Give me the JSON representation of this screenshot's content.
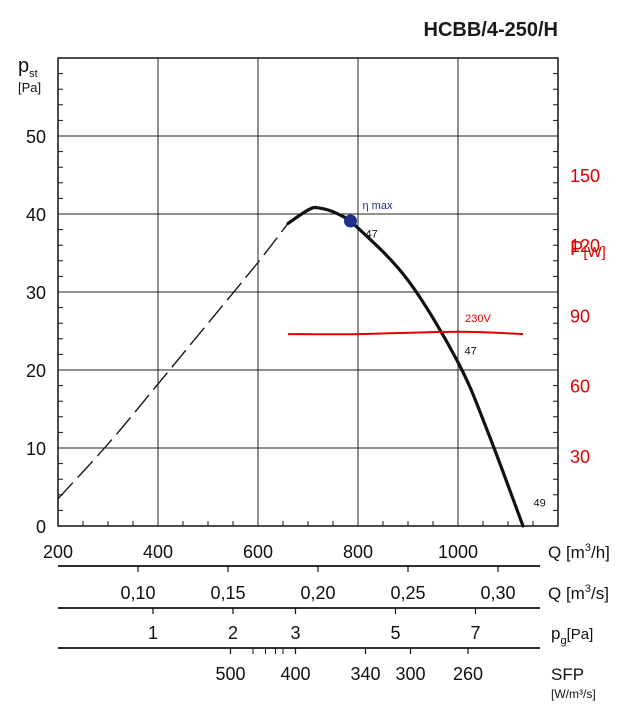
{
  "chart_data": {
    "type": "line",
    "title": "HCBB/4-250/H",
    "x_axis": {
      "label_main": "Q [m",
      "label_sup": "3",
      "label_end": "/h]",
      "min": 200,
      "max": 1000,
      "range": [
        200,
        1200
      ],
      "ticks": [
        "200",
        "400",
        "600",
        "800",
        "1000"
      ]
    },
    "y_axis": {
      "label_top": "p",
      "label_sub": "st",
      "label_unit": "[Pa]",
      "range": [
        0,
        60
      ],
      "ticks": [
        "0",
        "10",
        "20",
        "30",
        "40",
        "50"
      ]
    },
    "power_axis": {
      "label": "P",
      "label_unit": "[W]",
      "range": [
        0,
        200
      ],
      "ticks": [
        "30",
        "60",
        "90",
        "120",
        "150"
      ],
      "color": "#e00000"
    },
    "grid": true,
    "series": [
      {
        "style": "dashed",
        "x": [
          200,
          300,
          400,
          500,
          600,
          660
        ],
        "y": [
          3.5,
          10.5,
          18.2,
          26.0,
          33.8,
          38.8
        ]
      },
      {
        "style": "solid",
        "x": [
          660,
          700,
          720,
          760,
          800,
          900,
          1000,
          1060,
          1130
        ],
        "y": [
          38.8,
          40.5,
          40.8,
          40.0,
          38.2,
          31.5,
          21.0,
          12.0,
          0
        ]
      },
      {
        "name": "230V",
        "style": "power",
        "x": [
          660,
          800,
          1000,
          1130
        ],
        "y": [
          82,
          82,
          83,
          82
        ],
        "color": "#e00000"
      }
    ],
    "eta_max": {
      "label": "η max",
      "x": 785,
      "y": 39.1,
      "color": "#1e2f8a"
    },
    "efficiency_labels": [
      {
        "text": "47",
        "x": 807,
        "y": 37
      },
      {
        "text": "47",
        "x": 1005,
        "y": 22.0
      },
      {
        "text": "49",
        "x": 1143,
        "y": 2.5
      }
    ],
    "secondary_scales": [
      {
        "label": "Q [m³/s]",
        "label_main": "Q [m",
        "label_sup": "3",
        "label_end": "/s]",
        "ticks": [
          {
            "text": "0,10",
            "q": 360
          },
          {
            "text": "0,15",
            "q": 540
          },
          {
            "text": "0,20",
            "q": 720
          },
          {
            "text": "0,25",
            "q": 900
          },
          {
            "text": "0,30",
            "q": 1080
          }
        ]
      },
      {
        "label": "pg[Pa]",
        "label_main": "p",
        "label_sub": "g",
        "label_end": "[Pa]",
        "ticks": [
          {
            "text": "1",
            "q": 390
          },
          {
            "text": "2",
            "q": 550
          },
          {
            "text": "3",
            "q": 675
          },
          {
            "text": "5",
            "q": 875
          },
          {
            "text": "7",
            "q": 1035
          }
        ]
      },
      {
        "label": "SFP [W/m³/s]",
        "label_main": "SFP",
        "label_second": "[W/m³/s]",
        "ticks": [
          {
            "text": "500",
            "q": 545
          },
          {
            "text": "400",
            "q": 675
          },
          {
            "text": "340",
            "q": 815
          },
          {
            "text": "300",
            "q": 905
          },
          {
            "text": "260",
            "q": 1020
          }
        ]
      }
    ]
  }
}
